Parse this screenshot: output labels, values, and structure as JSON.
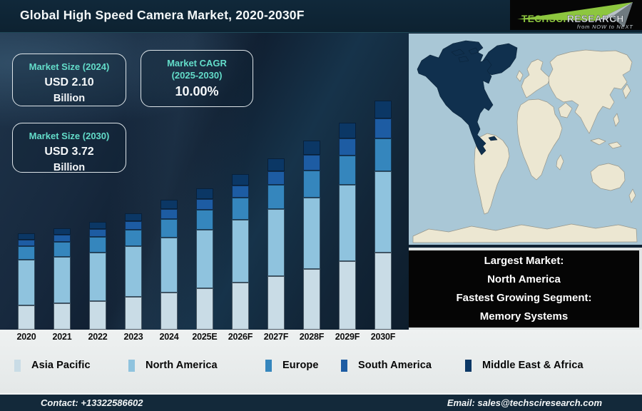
{
  "header": {
    "title": "Global High Speed Camera Market, 2020-2030F",
    "logo": {
      "brand_primary": "TechSci",
      "brand_secondary": "Research",
      "tagline": "from NOW to NEXT",
      "brand_color": "#8dc63f"
    }
  },
  "info_boxes": [
    {
      "title": "Market Size (2024)",
      "value": "USD 2.10",
      "unit": "Billion"
    },
    {
      "title": "Market CAGR",
      "subtitle": "(2025-2030)",
      "value": "10.00%"
    },
    {
      "title": "Market Size (2030)",
      "value": "USD 3.72",
      "unit": "Billion"
    }
  ],
  "callout": {
    "lines": [
      "Largest Market:",
      "North America",
      "Fastest Growing Segment:",
      "Memory Systems"
    ]
  },
  "map": {
    "highlighted_region": "North America",
    "highlight_color": "#10304e",
    "land_color": "#ece7d2",
    "ocean_color": "#a9c7d6"
  },
  "chart_data": {
    "type": "bar",
    "stacked": true,
    "title": "Global High Speed Camera Market, 2020-2030F",
    "unit": "USD Billion",
    "categories": [
      "2020",
      "2021",
      "2022",
      "2023",
      "2024",
      "2025E",
      "2026F",
      "2027F",
      "2028F",
      "2029F",
      "2030F"
    ],
    "series": [
      {
        "name": "Asia Pacific",
        "color": "#c9dce6",
        "values": [
          0.4,
          0.43,
          0.47,
          0.53,
          0.6,
          0.68,
          0.77,
          0.87,
          0.99,
          1.12,
          1.26
        ]
      },
      {
        "name": "North America",
        "color": "#8fc3de",
        "values": [
          0.74,
          0.76,
          0.79,
          0.83,
          0.89,
          0.95,
          1.02,
          1.09,
          1.16,
          1.24,
          1.32
        ]
      },
      {
        "name": "Europe",
        "color": "#3586bd",
        "values": [
          0.22,
          0.24,
          0.25,
          0.27,
          0.3,
          0.33,
          0.36,
          0.4,
          0.44,
          0.48,
          0.53
        ]
      },
      {
        "name": "South America",
        "color": "#1d5ca3",
        "values": [
          0.11,
          0.12,
          0.13,
          0.14,
          0.16,
          0.18,
          0.2,
          0.22,
          0.25,
          0.28,
          0.32
        ]
      },
      {
        "name": "Middle East & Africa",
        "color": "#0b3765",
        "values": [
          0.11,
          0.11,
          0.12,
          0.13,
          0.15,
          0.17,
          0.19,
          0.21,
          0.23,
          0.26,
          0.29
        ]
      }
    ],
    "totals": [
      1.58,
      1.66,
      1.76,
      1.9,
      2.1,
      2.31,
      2.54,
      2.79,
      3.07,
      3.38,
      3.72
    ],
    "annotations": {
      "market_size_2024_usd_billion": "2.10",
      "market_size_2030_usd_billion": "3.72",
      "cagr_2025_2030_percent": "10.00%",
      "largest_market": "North America",
      "fastest_growing_segment": "Memory Systems"
    },
    "legend_position": "bottom",
    "ylim": [
      0,
      4.2
    ],
    "grid": false
  },
  "footer": {
    "contact": "Contact: +13322586602",
    "email": "Email: sales@techsciresearch.com"
  }
}
